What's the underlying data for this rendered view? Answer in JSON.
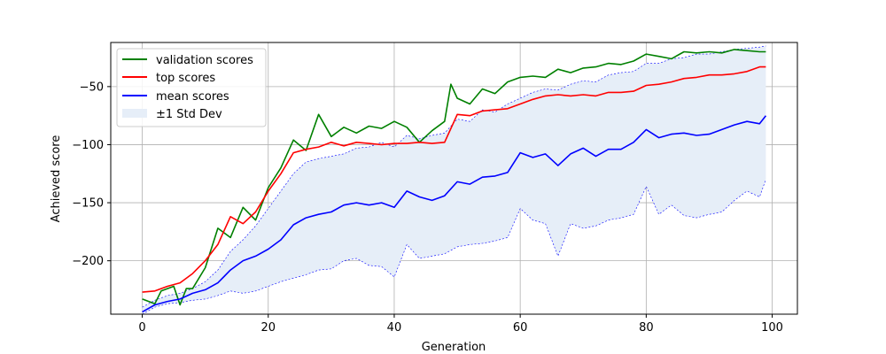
{
  "chart_data": {
    "type": "line",
    "title": "",
    "xlabel": "Generation",
    "ylabel": "Achieved score",
    "xlim": [
      -5,
      104
    ],
    "ylim": [
      -246,
      -12
    ],
    "xticks": [
      0,
      20,
      40,
      60,
      80,
      100
    ],
    "yticks": [
      -200,
      -150,
      -100,
      -50
    ],
    "grid": true,
    "legend": "upper-left",
    "legend_entries": [
      {
        "label": "validation scores",
        "color": "#008000",
        "kind": "line"
      },
      {
        "label": "top scores",
        "color": "#ff0000",
        "kind": "line"
      },
      {
        "label": "mean scores",
        "color": "#0000ff",
        "kind": "line"
      },
      {
        "label": "±1 Std Dev",
        "color": "#e6eef8",
        "kind": "patch"
      }
    ],
    "series": [
      {
        "name": "validation scores",
        "color": "#008000",
        "x": [
          0,
          2,
          3,
          5,
          6,
          7,
          8,
          10,
          12,
          14,
          16,
          18,
          20,
          22,
          24,
          26,
          28,
          30,
          32,
          34,
          36,
          38,
          40,
          42,
          44,
          46,
          48,
          49,
          50,
          52,
          54,
          56,
          58,
          60,
          62,
          64,
          66,
          68,
          70,
          72,
          74,
          76,
          78,
          80,
          82,
          84,
          86,
          88,
          90,
          92,
          94,
          96,
          98,
          99
        ],
        "y": [
          -233,
          -237,
          -226,
          -222,
          -238,
          -224,
          -224,
          -206,
          -172,
          -180,
          -154,
          -165,
          -137,
          -120,
          -96,
          -105,
          -74,
          -93,
          -85,
          -90,
          -84,
          -86,
          -80,
          -85,
          -98,
          -88,
          -80,
          -48,
          -60,
          -65,
          -52,
          -56,
          -46,
          -42,
          -41,
          -42,
          -35,
          -38,
          -34,
          -33,
          -30,
          -31,
          -28,
          -22,
          -24,
          -26,
          -20,
          -21,
          -20,
          -21,
          -18,
          -19,
          -20,
          -20
        ]
      },
      {
        "name": "top scores",
        "color": "#ff0000",
        "x": [
          0,
          2,
          4,
          6,
          8,
          10,
          12,
          14,
          16,
          18,
          20,
          22,
          24,
          26,
          28,
          30,
          32,
          34,
          36,
          38,
          40,
          42,
          44,
          46,
          48,
          50,
          52,
          54,
          56,
          58,
          60,
          62,
          64,
          66,
          68,
          70,
          72,
          74,
          76,
          78,
          80,
          82,
          84,
          86,
          88,
          90,
          92,
          94,
          96,
          98,
          99
        ],
        "y": [
          -227,
          -226,
          -222,
          -219,
          -211,
          -200,
          -186,
          -162,
          -168,
          -158,
          -140,
          -125,
          -107,
          -104,
          -102,
          -98,
          -101,
          -98,
          -99,
          -100,
          -99,
          -99,
          -98,
          -99,
          -98,
          -74,
          -75,
          -71,
          -70,
          -69,
          -65,
          -61,
          -58,
          -57,
          -58,
          -57,
          -58,
          -55,
          -55,
          -54,
          -49,
          -48,
          -46,
          -43,
          -42,
          -40,
          -40,
          -39,
          -37,
          -33,
          -33
        ]
      },
      {
        "name": "mean scores",
        "color": "#0000ff",
        "x": [
          0,
          2,
          4,
          6,
          8,
          10,
          12,
          14,
          16,
          18,
          20,
          22,
          24,
          26,
          28,
          30,
          32,
          34,
          36,
          38,
          40,
          42,
          44,
          46,
          48,
          50,
          52,
          54,
          56,
          58,
          60,
          62,
          64,
          66,
          68,
          70,
          72,
          74,
          76,
          78,
          80,
          82,
          84,
          86,
          88,
          90,
          92,
          94,
          96,
          98,
          99
        ],
        "y": [
          -244,
          -238,
          -235,
          -233,
          -228,
          -225,
          -219,
          -208,
          -200,
          -196,
          -190,
          -182,
          -169,
          -163,
          -160,
          -158,
          -152,
          -150,
          -152,
          -150,
          -154,
          -140,
          -145,
          -148,
          -144,
          -132,
          -134,
          -128,
          -127,
          -124,
          -107,
          -111,
          -108,
          -118,
          -108,
          -103,
          -110,
          -104,
          -104,
          -98,
          -87,
          -94,
          -91,
          -90,
          -92,
          -91,
          -87,
          -83,
          -80,
          -82,
          -75
        ]
      }
    ],
    "band": {
      "name": "±1 Std Dev",
      "x": [
        0,
        2,
        4,
        6,
        8,
        10,
        12,
        14,
        16,
        18,
        20,
        22,
        24,
        26,
        28,
        30,
        32,
        34,
        36,
        38,
        40,
        42,
        44,
        46,
        48,
        50,
        52,
        54,
        56,
        58,
        60,
        62,
        64,
        66,
        68,
        70,
        72,
        74,
        76,
        78,
        80,
        82,
        84,
        86,
        88,
        90,
        92,
        94,
        96,
        98,
        99
      ],
      "upper": [
        -240,
        -234,
        -230,
        -228,
        -224,
        -218,
        -208,
        -192,
        -182,
        -170,
        -155,
        -140,
        -125,
        -115,
        -112,
        -110,
        -108,
        -103,
        -102,
        -98,
        -102,
        -92,
        -95,
        -92,
        -90,
        -78,
        -80,
        -70,
        -72,
        -65,
        -60,
        -55,
        -52,
        -53,
        -48,
        -45,
        -46,
        -40,
        -38,
        -37,
        -30,
        -30,
        -26,
        -25,
        -22,
        -22,
        -20,
        -18,
        -17,
        -16,
        -15
      ],
      "lower": [
        -246,
        -240,
        -237,
        -236,
        -234,
        -233,
        -230,
        -226,
        -228,
        -226,
        -222,
        -218,
        -215,
        -212,
        -208,
        -207,
        -200,
        -198,
        -204,
        -205,
        -214,
        -186,
        -198,
        -196,
        -194,
        -188,
        -186,
        -185,
        -183,
        -180,
        -155,
        -165,
        -168,
        -196,
        -168,
        -172,
        -170,
        -165,
        -163,
        -160,
        -136,
        -160,
        -152,
        -161,
        -163,
        -160,
        -158,
        -148,
        -140,
        -145,
        -130
      ]
    }
  }
}
